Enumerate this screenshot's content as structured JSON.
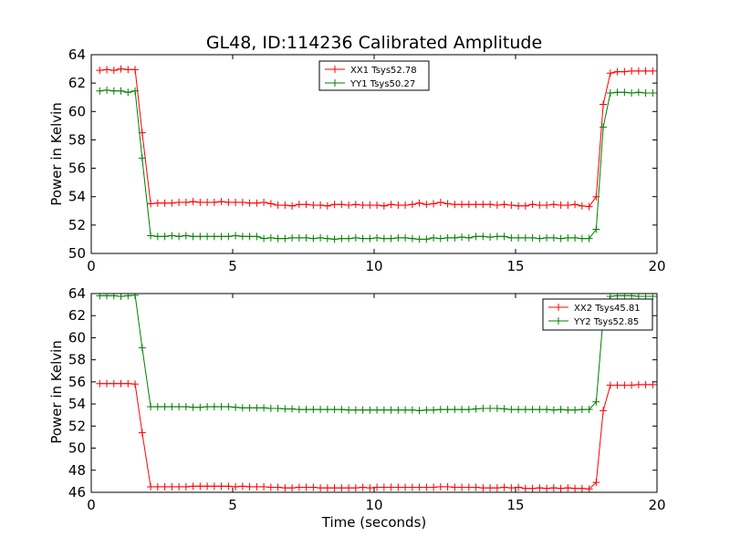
{
  "colors": {
    "xx": "#ff0000",
    "yy": "#008000"
  },
  "chart_data": [
    {
      "type": "line",
      "title": "GL48, ID:114236 Calibrated Amplitude",
      "xlabel": "",
      "ylabel": "Power in Kelvin",
      "xlim": [
        0,
        20
      ],
      "ylim": [
        50,
        64
      ],
      "xticks": [
        0,
        5,
        10,
        15,
        20
      ],
      "yticks": [
        50,
        52,
        54,
        56,
        58,
        60,
        62,
        64
      ],
      "grid": false,
      "legend_position": "top-center",
      "x": [
        0.3,
        0.55,
        0.8,
        1.05,
        1.3,
        1.55,
        1.8,
        2.1,
        2.35,
        2.6,
        2.85,
        3.1,
        3.35,
        3.6,
        3.85,
        4.1,
        4.35,
        4.6,
        4.85,
        5.1,
        5.35,
        5.6,
        5.85,
        6.1,
        6.35,
        6.6,
        6.85,
        7.1,
        7.35,
        7.6,
        7.85,
        8.1,
        8.35,
        8.6,
        8.85,
        9.1,
        9.35,
        9.6,
        9.85,
        10.1,
        10.35,
        10.6,
        10.85,
        11.1,
        11.35,
        11.6,
        11.85,
        12.1,
        12.35,
        12.6,
        12.85,
        13.1,
        13.35,
        13.6,
        13.85,
        14.1,
        14.35,
        14.6,
        14.85,
        15.1,
        15.35,
        15.6,
        15.85,
        16.1,
        16.35,
        16.6,
        16.85,
        17.1,
        17.35,
        17.6,
        17.85,
        18.1,
        18.35,
        18.6,
        18.85,
        19.1,
        19.35,
        19.6,
        19.85
      ],
      "series": [
        {
          "name": "XX1 Tsys52.78",
          "color": "#ff0000",
          "values": [
            62.9,
            62.95,
            62.9,
            63.0,
            62.95,
            62.95,
            58.5,
            53.5,
            53.55,
            53.55,
            53.55,
            53.6,
            53.6,
            53.65,
            53.6,
            53.6,
            53.6,
            53.65,
            53.6,
            53.6,
            53.6,
            53.55,
            53.55,
            53.6,
            53.5,
            53.4,
            53.4,
            53.35,
            53.45,
            53.45,
            53.4,
            53.4,
            53.35,
            53.45,
            53.45,
            53.4,
            53.45,
            53.4,
            53.4,
            53.4,
            53.35,
            53.45,
            53.4,
            53.4,
            53.45,
            53.55,
            53.45,
            53.5,
            53.6,
            53.5,
            53.45,
            53.45,
            53.45,
            53.45,
            53.45,
            53.45,
            53.4,
            53.45,
            53.4,
            53.35,
            53.35,
            53.45,
            53.4,
            53.4,
            53.45,
            53.4,
            53.4,
            53.45,
            53.35,
            53.3,
            54.0,
            60.5,
            62.7,
            62.8,
            62.8,
            62.85,
            62.85,
            62.85,
            62.85
          ]
        },
        {
          "name": "YY1 Tsys50.27",
          "color": "#008000",
          "values": [
            61.45,
            61.5,
            61.45,
            61.45,
            61.35,
            61.45,
            56.7,
            51.25,
            51.2,
            51.2,
            51.25,
            51.2,
            51.25,
            51.2,
            51.2,
            51.2,
            51.2,
            51.2,
            51.2,
            51.25,
            51.2,
            51.2,
            51.2,
            51.05,
            51.1,
            51.05,
            51.05,
            51.1,
            51.1,
            51.1,
            51.05,
            51.1,
            51.05,
            51.0,
            51.05,
            51.05,
            51.1,
            51.05,
            51.05,
            51.1,
            51.05,
            51.05,
            51.1,
            51.1,
            51.05,
            51.0,
            51.0,
            51.1,
            51.05,
            51.1,
            51.1,
            51.15,
            51.1,
            51.2,
            51.2,
            51.15,
            51.2,
            51.2,
            51.1,
            51.1,
            51.1,
            51.1,
            51.05,
            51.1,
            51.1,
            51.05,
            51.1,
            51.1,
            51.05,
            51.05,
            51.7,
            58.9,
            61.3,
            61.35,
            61.35,
            61.3,
            61.35,
            61.3,
            61.3
          ]
        }
      ]
    },
    {
      "type": "line",
      "title": "",
      "xlabel": "Time (seconds)",
      "ylabel": "Power in Kelvin",
      "xlim": [
        0,
        20
      ],
      "ylim": [
        46,
        64
      ],
      "xticks": [
        0,
        5,
        10,
        15,
        20
      ],
      "yticks": [
        46,
        48,
        50,
        52,
        54,
        56,
        58,
        60,
        62,
        64
      ],
      "grid": false,
      "legend_position": "top-right",
      "x": [
        0.3,
        0.55,
        0.8,
        1.05,
        1.3,
        1.55,
        1.8,
        2.1,
        2.35,
        2.6,
        2.85,
        3.1,
        3.35,
        3.6,
        3.85,
        4.1,
        4.35,
        4.6,
        4.85,
        5.1,
        5.35,
        5.6,
        5.85,
        6.1,
        6.35,
        6.6,
        6.85,
        7.1,
        7.35,
        7.6,
        7.85,
        8.1,
        8.35,
        8.6,
        8.85,
        9.1,
        9.35,
        9.6,
        9.85,
        10.1,
        10.35,
        10.6,
        10.85,
        11.1,
        11.35,
        11.6,
        11.85,
        12.1,
        12.35,
        12.6,
        12.85,
        13.1,
        13.35,
        13.6,
        13.85,
        14.1,
        14.35,
        14.6,
        14.85,
        15.1,
        15.35,
        15.6,
        15.85,
        16.1,
        16.35,
        16.6,
        16.85,
        17.1,
        17.35,
        17.6,
        17.85,
        18.1,
        18.35,
        18.6,
        18.85,
        19.1,
        19.35,
        19.6,
        19.85
      ],
      "series": [
        {
          "name": "XX2 Tsys45.81",
          "color": "#ff0000",
          "values": [
            55.85,
            55.85,
            55.85,
            55.85,
            55.85,
            55.8,
            51.4,
            46.5,
            46.5,
            46.5,
            46.5,
            46.5,
            46.5,
            46.55,
            46.55,
            46.55,
            46.55,
            46.55,
            46.55,
            46.5,
            46.55,
            46.5,
            46.5,
            46.5,
            46.45,
            46.45,
            46.4,
            46.4,
            46.45,
            46.45,
            46.45,
            46.4,
            46.4,
            46.4,
            46.4,
            46.4,
            46.4,
            46.45,
            46.4,
            46.45,
            46.45,
            46.45,
            46.45,
            46.45,
            46.45,
            46.45,
            46.45,
            46.45,
            46.5,
            46.5,
            46.45,
            46.45,
            46.45,
            46.45,
            46.4,
            46.4,
            46.4,
            46.45,
            46.4,
            46.45,
            46.35,
            46.35,
            46.4,
            46.35,
            46.4,
            46.35,
            46.4,
            46.35,
            46.35,
            46.3,
            46.9,
            53.4,
            55.7,
            55.7,
            55.7,
            55.7,
            55.75,
            55.75,
            55.75
          ]
        },
        {
          "name": "YY2 Tsys52.85",
          "color": "#008000",
          "values": [
            63.8,
            63.8,
            63.8,
            63.75,
            63.8,
            63.85,
            59.1,
            53.75,
            53.75,
            53.75,
            53.75,
            53.75,
            53.75,
            53.7,
            53.7,
            53.75,
            53.75,
            53.75,
            53.75,
            53.7,
            53.65,
            53.65,
            53.65,
            53.65,
            53.6,
            53.6,
            53.55,
            53.55,
            53.5,
            53.5,
            53.5,
            53.5,
            53.5,
            53.5,
            53.5,
            53.45,
            53.45,
            53.45,
            53.45,
            53.45,
            53.45,
            53.45,
            53.45,
            53.45,
            53.45,
            53.4,
            53.45,
            53.45,
            53.5,
            53.5,
            53.5,
            53.5,
            53.5,
            53.55,
            53.6,
            53.6,
            53.6,
            53.55,
            53.5,
            53.5,
            53.5,
            53.5,
            53.5,
            53.5,
            53.45,
            53.5,
            53.45,
            53.45,
            53.5,
            53.5,
            54.2,
            61.9,
            63.75,
            63.8,
            63.8,
            63.8,
            63.75,
            63.75,
            63.75
          ]
        }
      ]
    }
  ]
}
